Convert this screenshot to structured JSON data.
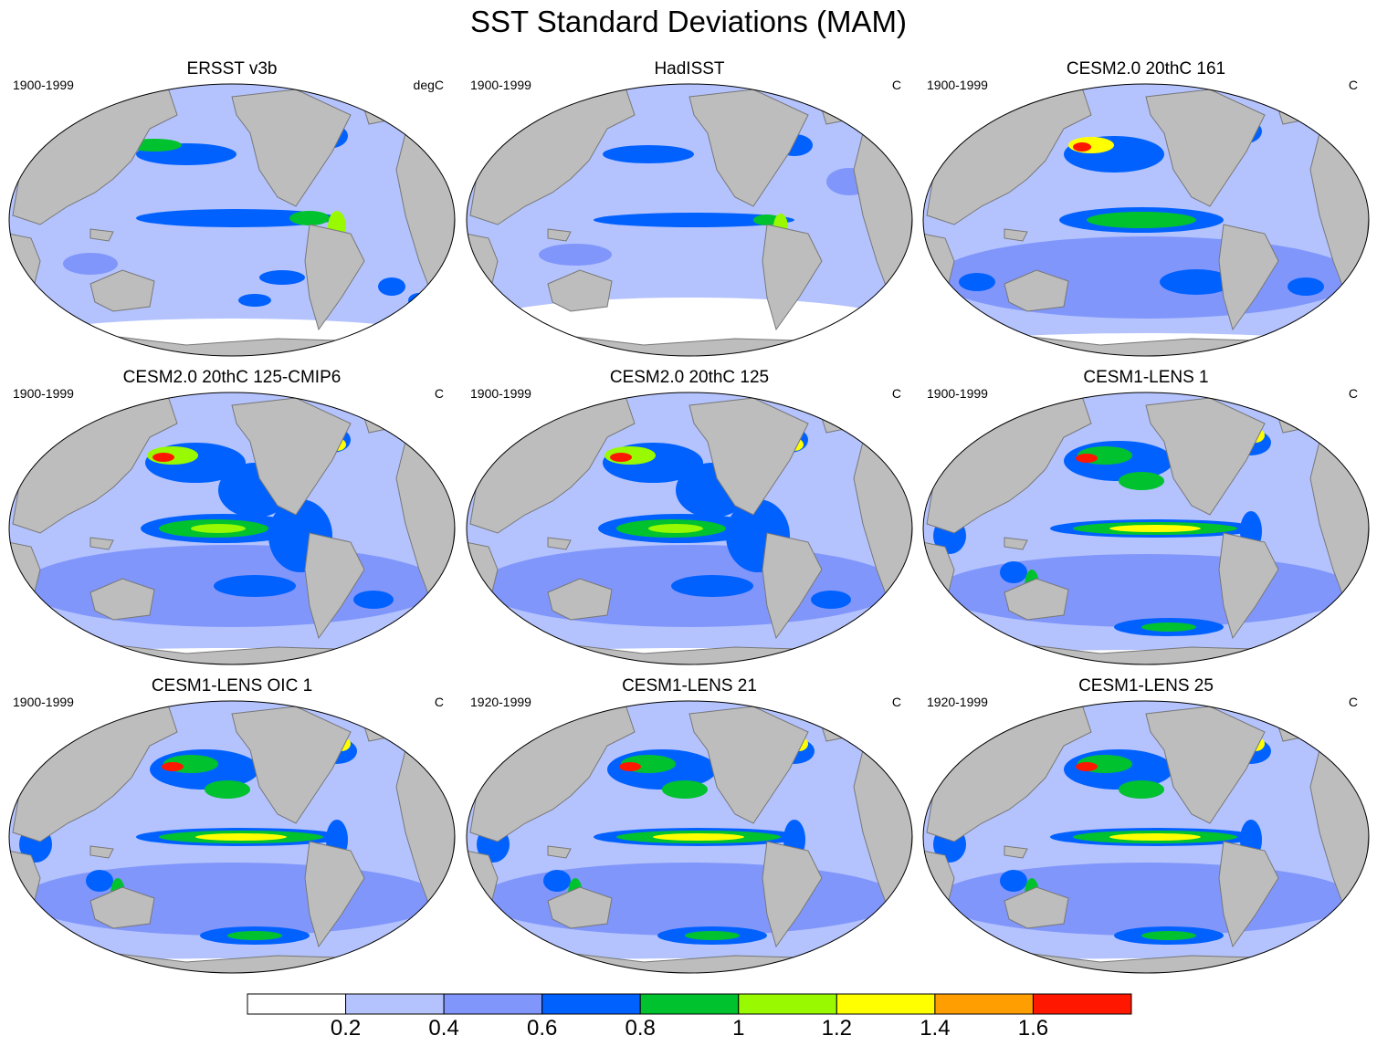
{
  "title": "SST Standard Deviations (MAM)",
  "panels": [
    {
      "title": "ERSST v3b",
      "period": "1900-1999",
      "units": "degC",
      "variant": 0
    },
    {
      "title": "HadISST",
      "period": "1900-1999",
      "units": "C",
      "variant": 1
    },
    {
      "title": "CESM2.0 20thC 161",
      "period": "1900-1999",
      "units": "C",
      "variant": 2
    },
    {
      "title": "CESM2.0 20thC 125-CMIP6",
      "period": "1900-1999",
      "units": "C",
      "variant": 3
    },
    {
      "title": "CESM2.0 20thC 125",
      "period": "1900-1999",
      "units": "C",
      "variant": 3
    },
    {
      "title": "CESM1-LENS 1",
      "period": "1900-1999",
      "units": "C",
      "variant": 4
    },
    {
      "title": "CESM1-LENS OIC 1",
      "period": "1900-1999",
      "units": "C",
      "variant": 4
    },
    {
      "title": "CESM1-LENS 21",
      "period": "1920-1999",
      "units": "C",
      "variant": 4
    },
    {
      "title": "CESM1-LENS 25",
      "period": "1920-1999",
      "units": "C",
      "variant": 4
    }
  ],
  "colorbar": {
    "colors": [
      "#ffffff",
      "#b4c3fd",
      "#8096fb",
      "#0061ff",
      "#00c22e",
      "#98f900",
      "#ffff00",
      "#ff9e00",
      "#ff1700"
    ],
    "labels": [
      "0.2",
      "0.4",
      "0.6",
      "0.8",
      "1",
      "1.2",
      "1.4",
      "1.6"
    ]
  },
  "land_color": "#bdbdbd"
}
